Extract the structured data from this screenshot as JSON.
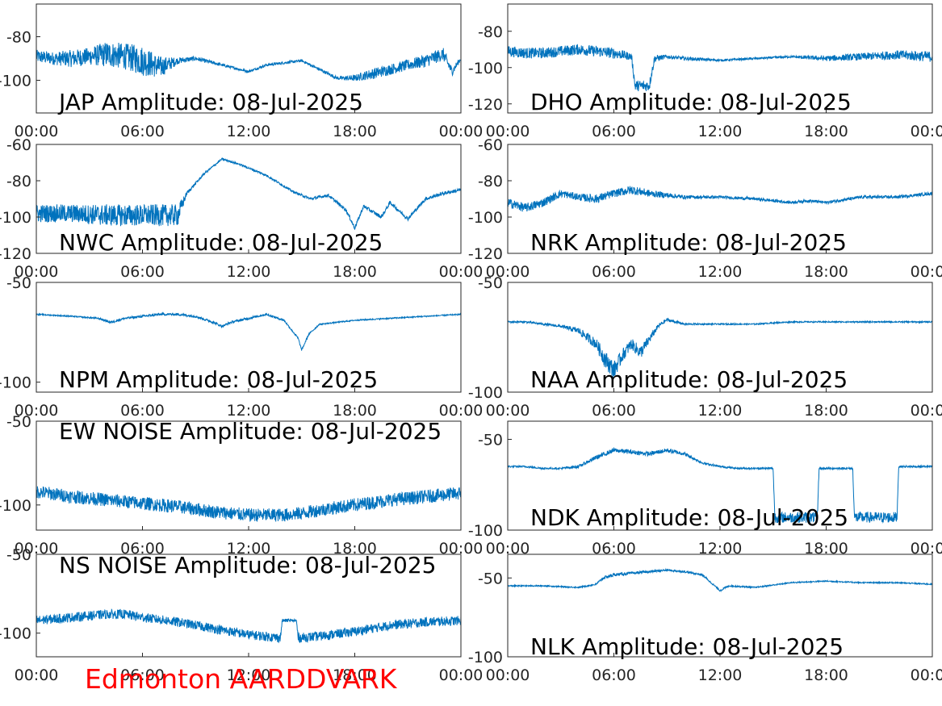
{
  "footer": {
    "text": "Edmonton AARDDVARK",
    "color": "#ff0000"
  },
  "trace_color": "#0072bd",
  "chart_data": [
    {
      "type": "line",
      "title": "JAP Amplitude: 08-Jul-2025",
      "xlim": [
        0,
        24
      ],
      "ylim": [
        -115,
        -65
      ],
      "xticks": [
        "00:00",
        "06:00",
        "12:00",
        "18:00",
        "00:00"
      ],
      "yticks": [
        -80,
        -100
      ],
      "x": [
        0,
        1,
        2,
        3,
        4,
        5,
        6,
        7,
        8,
        9,
        10,
        11,
        12,
        13,
        14,
        15,
        16,
        17,
        18,
        19,
        20,
        21,
        22,
        23,
        23.5,
        24
      ],
      "y": [
        -89,
        -90,
        -90,
        -89,
        -88,
        -89,
        -91,
        -94,
        -91,
        -90,
        -92,
        -94,
        -96,
        -93,
        -92,
        -91,
        -95,
        -99,
        -99,
        -97,
        -95,
        -93,
        -91,
        -88,
        -96,
        -90
      ],
      "noise": [
        3,
        3,
        4,
        4,
        6,
        6,
        7,
        5,
        1.5,
        1,
        0.8,
        0.6,
        0.6,
        0.6,
        0.6,
        0.6,
        0.7,
        0.8,
        1.5,
        2.5,
        2.5,
        2.5,
        3,
        3,
        2,
        1
      ]
    },
    {
      "type": "line",
      "title": "DHO Amplitude: 08-Jul-2025",
      "xlim": [
        0,
        24
      ],
      "ylim": [
        -125,
        -65
      ],
      "xticks": [
        "00:00",
        "06:00",
        "12:00",
        "18:00",
        "00:00"
      ],
      "yticks": [
        -80,
        -100,
        -120
      ],
      "x": [
        0,
        1,
        2,
        3,
        4,
        5,
        6,
        7,
        7.2,
        8,
        8.3,
        9,
        10,
        12,
        14,
        16,
        18,
        20,
        22,
        24
      ],
      "y": [
        -91,
        -92,
        -92,
        -91,
        -90,
        -91,
        -92,
        -94,
        -110,
        -110,
        -95,
        -94,
        -95,
        -96,
        -95,
        -94,
        -95,
        -94,
        -93,
        -94
      ],
      "noise": [
        3,
        3,
        3,
        3,
        3,
        3,
        3,
        2,
        3,
        3,
        2,
        1,
        1,
        0.6,
        0.6,
        0.6,
        1.5,
        2,
        2.5,
        3
      ]
    },
    {
      "type": "line",
      "title": "NWC Amplitude: 08-Jul-2025",
      "xlim": [
        0,
        24
      ],
      "ylim": [
        -120,
        -60
      ],
      "xticks": [
        "00:00",
        "06:00",
        "12:00",
        "18:00",
        "00:00"
      ],
      "yticks": [
        -60,
        -80,
        -100,
        -120
      ],
      "x": [
        0,
        2,
        4,
        6,
        8,
        8.5,
        9.5,
        10.5,
        11.5,
        13,
        14.5,
        15.5,
        16.5,
        17.5,
        18,
        18.5,
        19.5,
        20,
        21,
        22,
        23,
        24
      ],
      "y": [
        -98,
        -98,
        -99,
        -99,
        -99,
        -87,
        -76,
        -68,
        -71,
        -77,
        -86,
        -90,
        -88,
        -96,
        -106,
        -94,
        -100,
        -92,
        -101,
        -90,
        -87,
        -85
      ],
      "noise": [
        5,
        5,
        6,
        6,
        6,
        1,
        0.6,
        0.5,
        0.5,
        0.6,
        0.6,
        0.8,
        0.8,
        1,
        1,
        1,
        1,
        1,
        1,
        1,
        1,
        1
      ]
    },
    {
      "type": "line",
      "title": "NRK Amplitude: 08-Jul-2025",
      "xlim": [
        0,
        24
      ],
      "ylim": [
        -120,
        -60
      ],
      "xticks": [
        "00:00",
        "06:00",
        "12:00",
        "18:00",
        "00:00"
      ],
      "yticks": [
        -60,
        -80,
        -100,
        -120
      ],
      "x": [
        0,
        1,
        2,
        3,
        4,
        5,
        6,
        7,
        8,
        9,
        10,
        12,
        14,
        16,
        17,
        18,
        20,
        22,
        23,
        24
      ],
      "y": [
        -92,
        -95,
        -92,
        -87,
        -89,
        -90,
        -87,
        -85,
        -87,
        -88,
        -89,
        -89,
        -90,
        -92,
        -91,
        -92,
        -89,
        -89,
        -88,
        -87
      ],
      "noise": [
        2.5,
        2.5,
        2.5,
        2,
        2,
        2.5,
        2,
        2.5,
        2,
        1.5,
        1,
        0.8,
        0.8,
        0.8,
        0.8,
        0.8,
        0.8,
        0.8,
        0.8,
        0.8
      ]
    },
    {
      "type": "line",
      "title": "NPM Amplitude: 08-Jul-2025",
      "xlim": [
        0,
        24
      ],
      "ylim": [
        -105,
        -50
      ],
      "xticks": [
        "00:00",
        "06:00",
        "12:00",
        "18:00",
        "00:00"
      ],
      "yticks": [
        -50,
        -100
      ],
      "x": [
        0,
        2,
        3.5,
        4.2,
        5,
        6,
        7,
        8,
        9,
        10,
        10.5,
        11,
        12,
        13,
        14,
        14.8,
        15,
        15.4,
        16,
        18,
        20,
        22,
        24
      ],
      "y": [
        -66,
        -67,
        -68,
        -70,
        -68,
        -67,
        -66,
        -66,
        -67,
        -70,
        -72,
        -70,
        -68,
        -66,
        -69,
        -78,
        -84,
        -76,
        -71,
        -69,
        -68,
        -67,
        -66
      ],
      "noise": [
        0.3,
        0.3,
        0.4,
        0.6,
        0.6,
        0.6,
        0.6,
        0.6,
        0.6,
        0.6,
        0.6,
        0.6,
        0.6,
        0.5,
        0.5,
        0.5,
        0.5,
        0.5,
        0.3,
        0.3,
        0.3,
        0.3,
        0.3
      ]
    },
    {
      "type": "line",
      "title": "NAA Amplitude: 08-Jul-2025",
      "xlim": [
        0,
        24
      ],
      "ylim": [
        -100,
        -50
      ],
      "xticks": [
        "00:00",
        "06:00",
        "12:00",
        "18:00",
        "00:00"
      ],
      "yticks": [
        -50,
        -100
      ],
      "x": [
        0,
        1,
        2,
        3,
        4,
        5,
        5.5,
        6,
        6.5,
        7,
        7.5,
        8,
        8.5,
        9,
        10,
        12,
        14,
        16,
        18,
        20,
        22,
        24
      ],
      "y": [
        -68,
        -68,
        -69,
        -70,
        -72,
        -78,
        -85,
        -90,
        -83,
        -78,
        -82,
        -76,
        -70,
        -67,
        -69,
        -69,
        -69,
        -68,
        -68,
        -68,
        -68,
        -68
      ],
      "noise": [
        0.4,
        0.4,
        0.5,
        0.6,
        1.5,
        2.5,
        4,
        4,
        3,
        2.5,
        3,
        2,
        1,
        0.8,
        0.4,
        0.3,
        0.3,
        0.3,
        0.3,
        0.3,
        0.3,
        0.3
      ]
    },
    {
      "type": "line",
      "title": "EW NOISE Amplitude: 08-Jul-2025",
      "xlim": [
        0,
        24
      ],
      "ylim": [
        -115,
        -50
      ],
      "xticks": [
        "00:00",
        "06:00",
        "12:00",
        "18:00",
        "00:00"
      ],
      "yticks": [
        -50,
        -100
      ],
      "x": [
        0,
        2,
        4,
        6,
        8,
        10,
        12,
        14,
        15,
        16,
        18,
        20,
        22,
        24
      ],
      "y": [
        -92,
        -95,
        -97,
        -99,
        -101,
        -104,
        -106,
        -106,
        -105,
        -103,
        -100,
        -97,
        -95,
        -93
      ],
      "noise": [
        4,
        4,
        4,
        4,
        4,
        4,
        4,
        4,
        4,
        4,
        4,
        4,
        4,
        4
      ]
    },
    {
      "type": "line",
      "title": "NDK Amplitude: 08-Jul-2025",
      "xlim": [
        0,
        24
      ],
      "ylim": [
        -100,
        -40
      ],
      "xticks": [
        "00:00",
        "06:00",
        "12:00",
        "18:00",
        "00:00"
      ],
      "yticks": [
        -50,
        -100
      ],
      "x": [
        0,
        1,
        2,
        3,
        4,
        5,
        6,
        7,
        8,
        9,
        10,
        11,
        12,
        13,
        14,
        15,
        15.1,
        17.5,
        17.6,
        19.5,
        19.6,
        22,
        22.1,
        24
      ],
      "y": [
        -65,
        -65,
        -66,
        -66,
        -65,
        -60,
        -56,
        -57,
        -58,
        -56,
        -58,
        -63,
        -65,
        -66,
        -66,
        -66,
        -93,
        -93,
        -66,
        -66,
        -93,
        -93,
        -65,
        -65
      ],
      "noise": [
        0.5,
        0.5,
        0.5,
        0.5,
        0.8,
        1.2,
        1.2,
        1.2,
        1.2,
        1.2,
        1,
        0.6,
        0.5,
        0.5,
        0.5,
        0.5,
        3,
        3,
        0.5,
        0.5,
        3,
        3,
        0.5,
        0.5
      ]
    },
    {
      "type": "line",
      "title": "NS NOISE Amplitude: 08-Jul-2025",
      "xlim": [
        0,
        24
      ],
      "ylim": [
        -115,
        -50
      ],
      "xticks": [
        "00:00",
        "06:00",
        "12:00",
        "18:00",
        "00:00"
      ],
      "yticks": [
        -50,
        -100
      ],
      "x": [
        0,
        2,
        4,
        5,
        6,
        8,
        10,
        12,
        13.8,
        13.9,
        14.7,
        14.8,
        16,
        18,
        20,
        22,
        24
      ],
      "y": [
        -92,
        -90,
        -88,
        -88,
        -90,
        -93,
        -97,
        -101,
        -103,
        -92,
        -92,
        -103,
        -102,
        -99,
        -95,
        -93,
        -92
      ],
      "noise": [
        3,
        3,
        3,
        3,
        3,
        3,
        3,
        3,
        3,
        1,
        1,
        3,
        3,
        3,
        3,
        3,
        3
      ]
    },
    {
      "type": "line",
      "title": "NLK Amplitude: 08-Jul-2025",
      "xlim": [
        0,
        24
      ],
      "ylim": [
        -100,
        -35
      ],
      "xticks": [
        "00:00",
        "06:00",
        "12:00",
        "18:00",
        "00:00"
      ],
      "yticks": [
        -50,
        -100
      ],
      "x": [
        0,
        2,
        4,
        5,
        5.4,
        6,
        7,
        8,
        9,
        10,
        11,
        11.5,
        12,
        12.5,
        14,
        16,
        18,
        20,
        22,
        24
      ],
      "y": [
        -55,
        -55,
        -56,
        -54,
        -50,
        -48,
        -47,
        -46,
        -45,
        -46,
        -48,
        -53,
        -58,
        -55,
        -56,
        -53,
        -52,
        -53,
        -53,
        -54
      ],
      "noise": [
        0.4,
        0.4,
        0.4,
        0.6,
        1,
        1,
        0.8,
        0.8,
        0.6,
        0.6,
        0.6,
        0.6,
        0.6,
        0.5,
        0.4,
        0.4,
        0.4,
        0.4,
        0.4,
        0.4
      ]
    }
  ]
}
